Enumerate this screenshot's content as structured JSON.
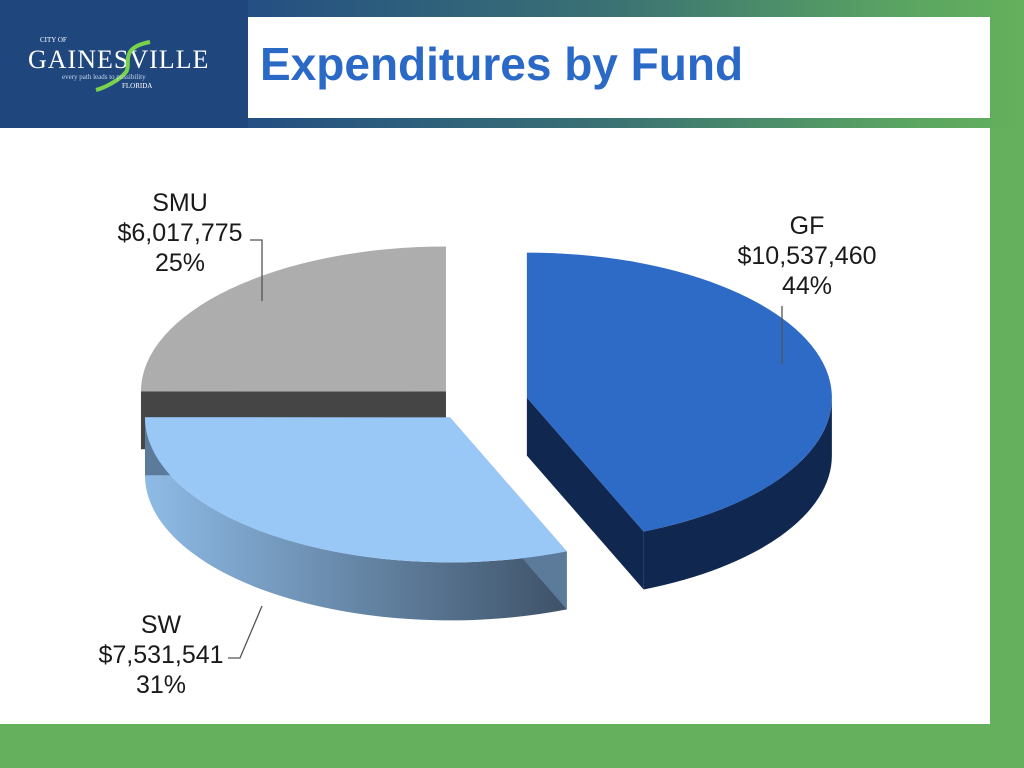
{
  "header": {
    "title": "Expenditures by Fund",
    "logo": {
      "city_of": "CITY OF",
      "name": "GAINESVILLE",
      "tagline": "every path leads to possibility",
      "state": "FLORIDA"
    }
  },
  "colors": {
    "title": "#2b69c7",
    "gf": "#2e6bc6",
    "sw": "#99c8f7",
    "smu": "#adadad",
    "background_green": "#64b05c"
  },
  "chart_data": {
    "type": "pie",
    "style": "3d-exploded",
    "slices": [
      {
        "label": "GF",
        "value_text": "$10,537,460",
        "value": 10537460,
        "percent_text": "44%",
        "percent": 44
      },
      {
        "label": "SW",
        "value_text": "$7,531,541",
        "value": 7531541,
        "percent_text": "31%",
        "percent": 31
      },
      {
        "label": "SMU",
        "value_text": "$6,017,775",
        "value": 6017775,
        "percent_text": "25%",
        "percent": 25
      }
    ]
  }
}
